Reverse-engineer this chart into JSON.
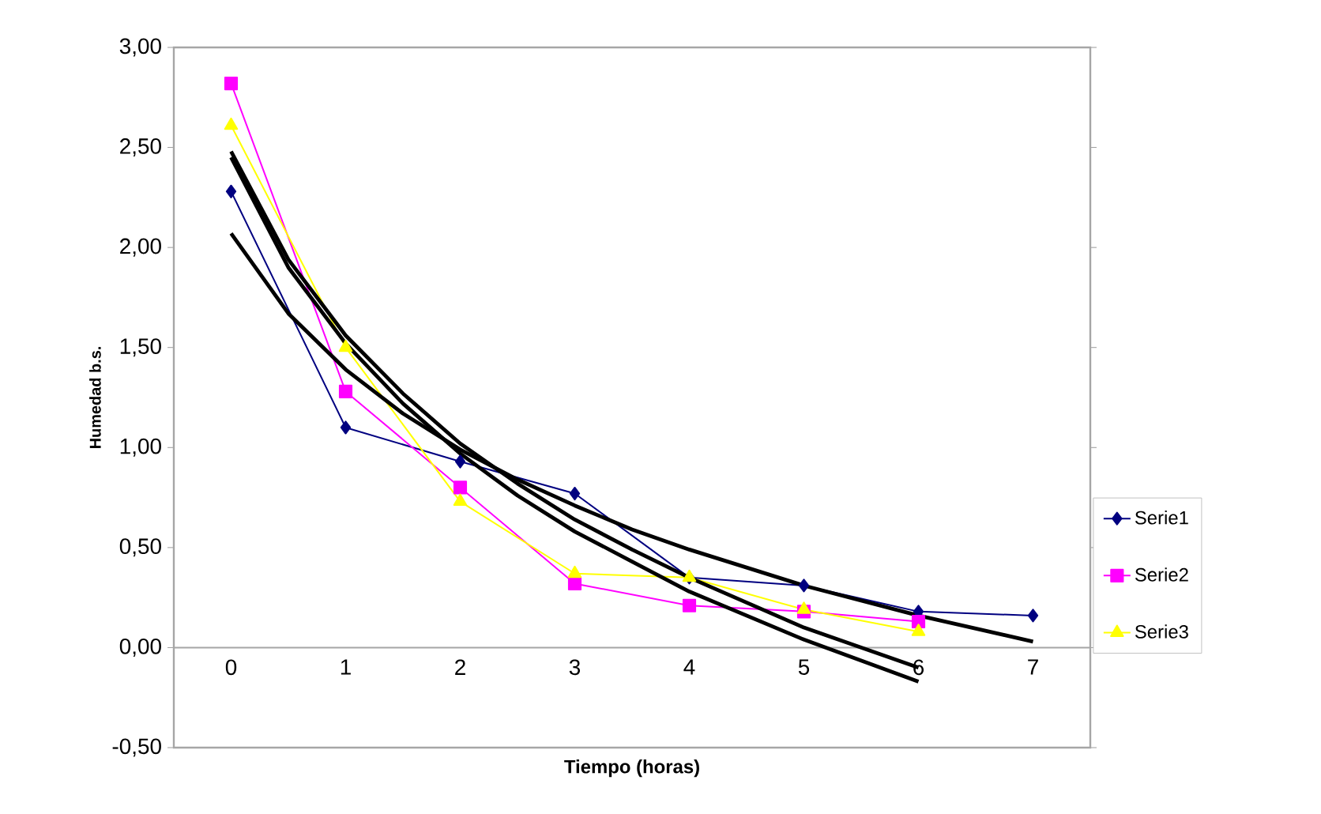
{
  "chart_data": {
    "type": "line",
    "xlabel": "Tiempo (horas)",
    "ylabel": "Humedad b.s.",
    "x": [
      0,
      1,
      2,
      3,
      4,
      5,
      6,
      7
    ],
    "xlim": [
      -0.5,
      7.5
    ],
    "xticks": [
      0,
      1,
      2,
      3,
      4,
      5,
      6,
      7
    ],
    "ylim": [
      -0.5,
      3.0
    ],
    "yticks": [
      {
        "value": -0.5,
        "label": "-0,50"
      },
      {
        "value": 0,
        "label": "0,00"
      },
      {
        "value": 0.5,
        "label": "0,50"
      },
      {
        "value": 1.0,
        "label": "1,00"
      },
      {
        "value": 1.5,
        "label": "1,50"
      },
      {
        "value": 2.0,
        "label": "2,00"
      },
      {
        "value": 2.5,
        "label": "2,50"
      },
      {
        "value": 3.0,
        "label": "3,00"
      }
    ],
    "grid": false,
    "legend": "right",
    "series": [
      {
        "name": "Serie1",
        "color": "#000080",
        "marker": "diamond",
        "values": [
          2.28,
          1.1,
          0.93,
          0.77,
          0.35,
          0.31,
          0.18,
          0.16
        ]
      },
      {
        "name": "Serie2",
        "color": "#ff00ff",
        "marker": "square",
        "values": [
          2.82,
          1.28,
          0.8,
          0.32,
          0.21,
          0.18,
          0.13,
          null
        ]
      },
      {
        "name": "Serie3",
        "color": "#ffff00",
        "marker": "triangle",
        "values": [
          2.61,
          1.5,
          0.73,
          0.37,
          0.35,
          0.19,
          0.08,
          null
        ]
      },
      {
        "color": "#000000",
        "marker": "none",
        "x": [
          0,
          0.5,
          1,
          1.5,
          2,
          2.5,
          3,
          3.5,
          4,
          5,
          6,
          7
        ],
        "values": [
          2.07,
          1.67,
          1.39,
          1.17,
          0.99,
          0.84,
          0.71,
          0.59,
          0.49,
          0.31,
          0.16,
          0.03
        ]
      },
      {
        "color": "#000000",
        "marker": "none",
        "x": [
          0,
          0.5,
          1,
          1.5,
          2,
          2.5,
          3,
          3.5,
          4,
          5,
          6
        ],
        "values": [
          2.48,
          1.94,
          1.56,
          1.27,
          1.02,
          0.82,
          0.64,
          0.49,
          0.35,
          0.1,
          -0.1
        ]
      },
      {
        "color": "#000000",
        "marker": "none",
        "x": [
          0,
          0.5,
          1,
          1.5,
          2,
          2.5,
          3,
          3.5,
          4,
          5,
          6
        ],
        "values": [
          2.45,
          1.9,
          1.52,
          1.22,
          0.97,
          0.76,
          0.58,
          0.43,
          0.28,
          0.04,
          -0.17
        ]
      }
    ]
  }
}
